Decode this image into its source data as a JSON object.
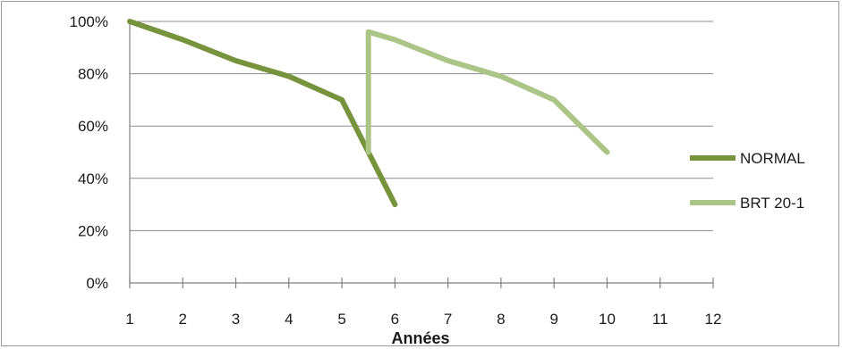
{
  "chart_data": {
    "type": "line",
    "title": "",
    "xlabel": "Années",
    "ylabel": "",
    "x_ticks": [
      "1",
      "2",
      "3",
      "4",
      "5",
      "6",
      "7",
      "8",
      "9",
      "10",
      "11",
      "12"
    ],
    "y_ticks": [
      "0%",
      "20%",
      "40%",
      "60%",
      "80%",
      "100%"
    ],
    "xlim": [
      1,
      12
    ],
    "ylim": [
      0,
      100
    ],
    "grid": "horizontal",
    "legend_position": "right",
    "series": [
      {
        "name": "NORMAL",
        "color": "#77933c",
        "points": [
          [
            1,
            100
          ],
          [
            2,
            93
          ],
          [
            3,
            85
          ],
          [
            4,
            79
          ],
          [
            5,
            70
          ],
          [
            5.5,
            50
          ],
          [
            6,
            30
          ]
        ]
      },
      {
        "name": "BRT 20-1",
        "color": "#aac586",
        "points": [
          [
            5.5,
            50
          ],
          [
            5.5,
            96
          ],
          [
            6,
            93
          ],
          [
            7,
            85
          ],
          [
            8,
            79
          ],
          [
            9,
            70
          ],
          [
            10,
            50
          ]
        ]
      }
    ]
  }
}
